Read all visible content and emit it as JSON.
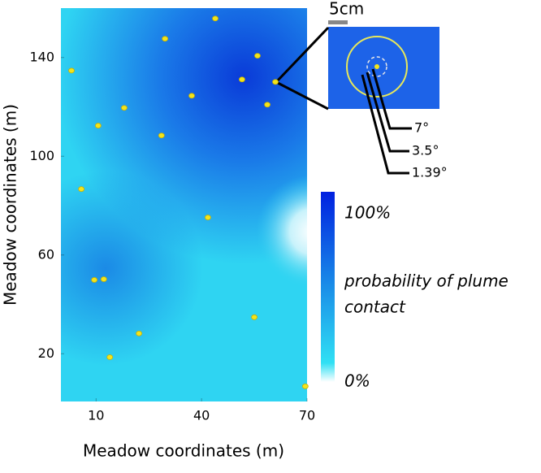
{
  "chart_data": {
    "type": "scatter",
    "xlabel": "Meadow coordinates (m)",
    "ylabel": "Meadow coordinates (m)",
    "xlim": [
      0,
      70
    ],
    "ylim": [
      0,
      160
    ],
    "xticks": [
      10,
      40,
      70
    ],
    "yticks": [
      20,
      60,
      100,
      140
    ],
    "color": "#f2e41c",
    "x": [
      43.9,
      29.6,
      55.9,
      3.0,
      51.5,
      61.0,
      37.2,
      58.7,
      18.0,
      10.6,
      28.6,
      5.8,
      41.8,
      9.5,
      12.2,
      55.0,
      22.2,
      13.9,
      69.5
    ],
    "y": [
      155.8,
      147.6,
      140.7,
      134.7,
      131.1,
      130.1,
      124.5,
      120.9,
      119.6,
      112.4,
      108.4,
      86.7,
      75.2,
      49.9,
      50.2,
      34.8,
      28.2,
      18.6,
      6.8
    ],
    "colorbar": {
      "max_label": "100%",
      "min_label": "0%",
      "label": [
        "probability of plume",
        "contact"
      ]
    },
    "inset": {
      "scale_label": "5cm",
      "angles": [
        "7°",
        "3.5°",
        "1.39°"
      ]
    }
  }
}
